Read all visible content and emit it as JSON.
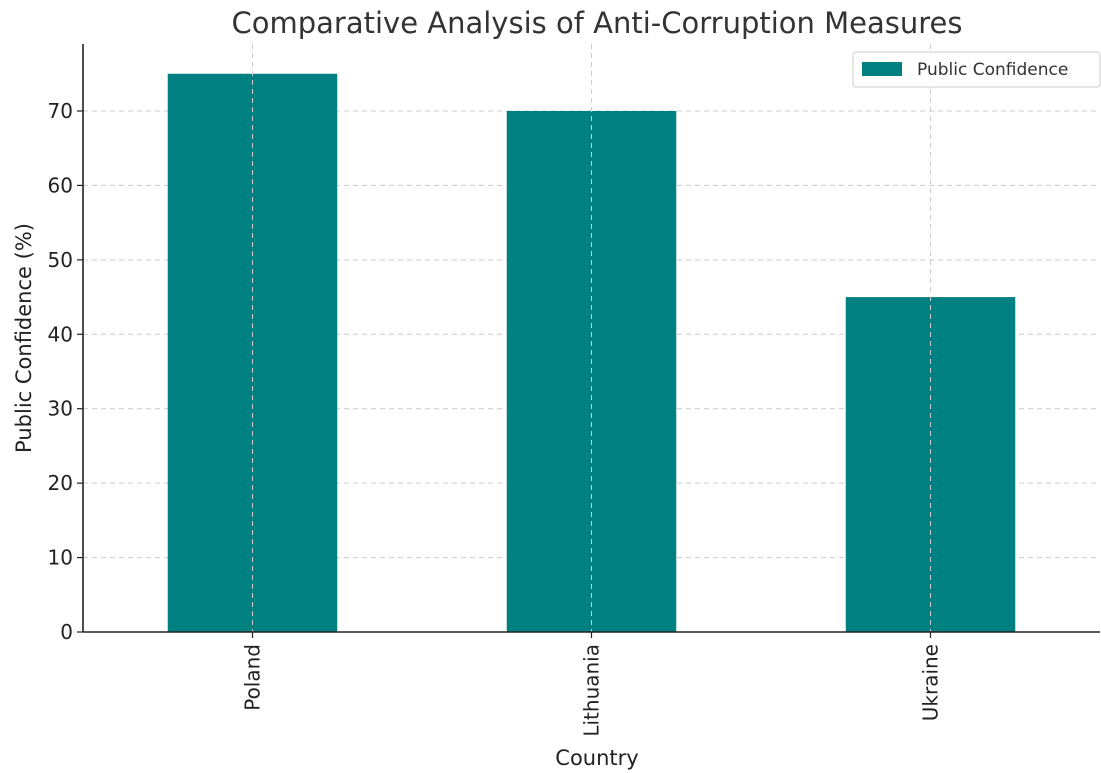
{
  "chart_data": {
    "type": "bar",
    "title": "Comparative Analysis of Anti-Corruption Measures",
    "xlabel": "Country",
    "ylabel": "Public Confidence (%)",
    "categories": [
      "Poland",
      "Lithuania",
      "Ukraine"
    ],
    "series": [
      {
        "name": "Public Confidence",
        "values": [
          75,
          70,
          45
        ],
        "color": "#008080"
      }
    ],
    "ylim": [
      0,
      79
    ],
    "yticks": [
      0,
      10,
      20,
      30,
      40,
      50,
      60,
      70
    ],
    "grid": true,
    "legend": "top-right"
  }
}
